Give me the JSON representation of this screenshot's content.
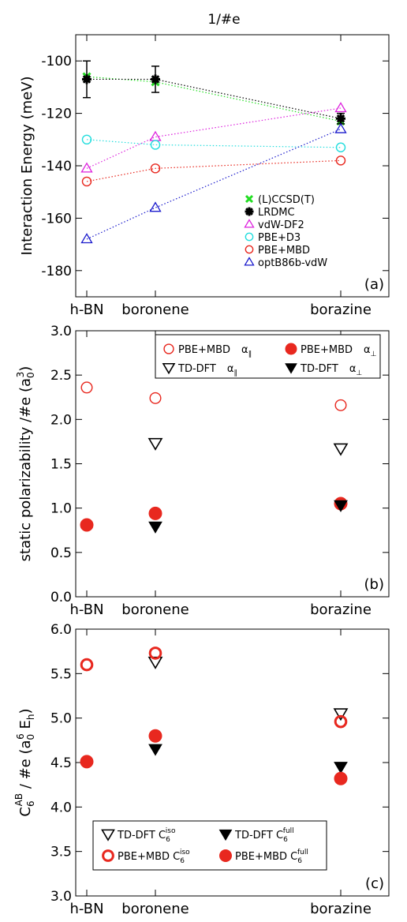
{
  "figure_title": "1/#e",
  "chart_data": [
    {
      "id": "a",
      "type": "scatter",
      "panel_label": "(a)",
      "ylabel": "Interaction Energy (meV)",
      "categories": [
        "h-BN",
        "boronene",
        "borazine"
      ],
      "x": [
        0,
        1,
        3.6
      ],
      "ylim": [
        -190,
        -90
      ],
      "yticks": [
        -100,
        -120,
        -140,
        -160,
        -180
      ],
      "connect_lines": true,
      "legend_position": "lower-right",
      "series": [
        {
          "name": "(L)CCSD(T)",
          "marker": "x",
          "color": "#22dd22",
          "values": [
            -106,
            -108,
            -123
          ]
        },
        {
          "name": "LRDMC",
          "marker": "star",
          "color": "#000000",
          "values": [
            -107,
            -107,
            -122
          ],
          "errors": [
            7,
            5,
            2
          ]
        },
        {
          "name": "vdW-DF2",
          "marker": "triangle-up",
          "color": "#dd22dd",
          "values": [
            -141,
            -129,
            -118
          ]
        },
        {
          "name": "PBE+D3",
          "marker": "circle-open",
          "color": "#22dddd",
          "values": [
            -130,
            -132,
            -133
          ]
        },
        {
          "name": "PBE+MBD",
          "marker": "circle-open",
          "color": "#e8281f",
          "values": [
            -146,
            -141,
            -138
          ]
        },
        {
          "name": "optB86b-vdW",
          "marker": "triangle-up",
          "color": "#1a1acc",
          "values": [
            -168,
            -156,
            -126
          ]
        }
      ]
    },
    {
      "id": "b",
      "type": "scatter",
      "panel_label": "(b)",
      "ylabel": "static polarizability /#e (a",
      "ylabel_sub": "0",
      "ylabel_sup": "3",
      "ylabel_end": ")",
      "categories": [
        "h-BN",
        "boronene",
        "borazine"
      ],
      "x": [
        0,
        1,
        3.6
      ],
      "ylim": [
        0,
        3
      ],
      "yticks": [
        "0.0",
        "0.5",
        "1.0",
        "1.5",
        "2.0",
        "2.5",
        "3.0"
      ],
      "legend_position": "top",
      "series": [
        {
          "name": "PBE+MBD",
          "param": "α",
          "param_sub": "∥",
          "marker": "circle-open",
          "color": "#e8281f",
          "values": [
            2.36,
            2.24,
            2.16
          ]
        },
        {
          "name": "PBE+MBD",
          "param": "α",
          "param_sub": "⊥",
          "marker": "circle-filled",
          "color": "#e8281f",
          "values": [
            0.81,
            0.94,
            1.05
          ]
        },
        {
          "name": "TD-DFT",
          "param": "α",
          "param_sub": "∥",
          "marker": "triangle-down-open",
          "color": "#000000",
          "values": [
            null,
            1.73,
            1.67
          ]
        },
        {
          "name": "TD-DFT",
          "param": "α",
          "param_sub": "⊥",
          "marker": "triangle-down-filled",
          "color": "#000000",
          "values": [
            null,
            0.79,
            1.03
          ]
        }
      ]
    },
    {
      "id": "c",
      "type": "scatter",
      "panel_label": "(c)",
      "ylabel_parts": {
        "c": "C",
        "sub": "6",
        "sup": "AB",
        "mid": " / #e (a",
        "sub2": "0",
        "sup2": "6",
        "e": " E",
        "sub3": "h",
        "end": ")"
      },
      "categories": [
        "h-BN",
        "boronene",
        "borazine"
      ],
      "x": [
        0,
        1,
        3.6
      ],
      "ylim": [
        3,
        6
      ],
      "yticks": [
        "3.0",
        "3.5",
        "4.0",
        "4.5",
        "5.0",
        "5.5",
        "6.0"
      ],
      "legend_position": "bottom",
      "series": [
        {
          "name": "TD-DFT C",
          "param_sub": "6",
          "param_sup": "iso",
          "marker": "triangle-down-open",
          "color": "#000000",
          "values": [
            null,
            5.63,
            5.05
          ]
        },
        {
          "name": "TD-DFT C",
          "param_sub": "6",
          "param_sup": "full",
          "marker": "triangle-down-filled",
          "color": "#000000",
          "values": [
            null,
            4.65,
            4.45
          ]
        },
        {
          "name": "PBE+MBD C",
          "param_sub": "6",
          "param_sup": "iso",
          "marker": "circle-open-thick",
          "color": "#e8281f",
          "values": [
            5.6,
            5.73,
            4.96
          ]
        },
        {
          "name": "PBE+MBD C",
          "param_sub": "6",
          "param_sup": "full",
          "marker": "circle-filled",
          "color": "#e8281f",
          "values": [
            4.51,
            4.8,
            4.32
          ]
        }
      ]
    }
  ]
}
